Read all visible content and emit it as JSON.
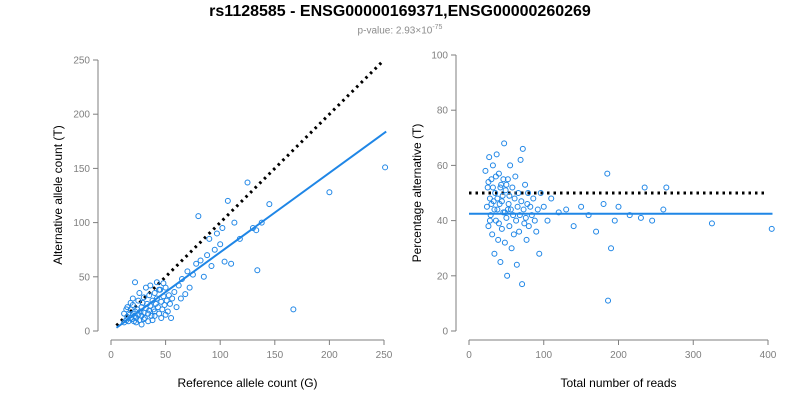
{
  "title": "rs1128585 - ENSG00000169371,ENSG00000260269",
  "subtitle": {
    "prefix": "p-value: 2.93×10",
    "exponent": "-75"
  },
  "colors": {
    "series": "#1f86e6",
    "reference": "#000000",
    "axis": "#7f7f7f"
  },
  "chart_data": [
    {
      "type": "scatter",
      "xlabel": "Reference allele count (G)",
      "ylabel": "Alternative allele count (T)",
      "xlim": [
        0,
        250
      ],
      "ylim": [
        0,
        250
      ],
      "xticks": [
        0,
        50,
        100,
        150,
        200,
        250
      ],
      "yticks": [
        0,
        50,
        100,
        150,
        200,
        250
      ],
      "grid": false,
      "reference_line": {
        "style": "dotted",
        "x": [
          5,
          250
        ],
        "y": [
          5,
          250
        ]
      },
      "fit_line": {
        "style": "solid",
        "x": [
          5,
          252
        ],
        "y": [
          3,
          184
        ]
      },
      "points": [
        [
          12,
          8
        ],
        [
          14,
          10
        ],
        [
          15,
          13
        ],
        [
          16,
          9
        ],
        [
          17,
          15
        ],
        [
          18,
          12
        ],
        [
          18,
          20
        ],
        [
          19,
          11
        ],
        [
          20,
          16
        ],
        [
          20,
          24
        ],
        [
          21,
          9
        ],
        [
          22,
          14
        ],
        [
          22,
          18
        ],
        [
          23,
          12
        ],
        [
          24,
          20
        ],
        [
          25,
          15
        ],
        [
          25,
          28
        ],
        [
          26,
          10
        ],
        [
          27,
          18
        ],
        [
          28,
          22
        ],
        [
          28,
          14
        ],
        [
          29,
          26
        ],
        [
          30,
          17
        ],
        [
          30,
          31
        ],
        [
          31,
          12
        ],
        [
          32,
          21
        ],
        [
          33,
          25
        ],
        [
          34,
          16
        ],
        [
          35,
          19
        ],
        [
          35,
          33
        ],
        [
          36,
          23
        ],
        [
          37,
          14
        ],
        [
          38,
          28
        ],
        [
          39,
          20
        ],
        [
          40,
          35
        ],
        [
          40,
          18
        ],
        [
          41,
          25
        ],
        [
          42,
          30
        ],
        [
          43,
          22
        ],
        [
          44,
          16
        ],
        [
          45,
          38
        ],
        [
          46,
          27
        ],
        [
          47,
          20
        ],
        [
          48,
          32
        ],
        [
          49,
          24
        ],
        [
          50,
          40
        ],
        [
          51,
          28
        ],
        [
          52,
          18
        ],
        [
          53,
          33
        ],
        [
          54,
          25
        ],
        [
          55,
          12
        ],
        [
          56,
          30
        ],
        [
          58,
          36
        ],
        [
          60,
          22
        ],
        [
          62,
          42
        ],
        [
          64,
          30
        ],
        [
          65,
          48
        ],
        [
          68,
          34
        ],
        [
          70,
          55
        ],
        [
          72,
          40
        ],
        [
          75,
          52
        ],
        [
          78,
          62
        ],
        [
          80,
          106
        ],
        [
          82,
          65
        ],
        [
          85,
          50
        ],
        [
          88,
          70
        ],
        [
          90,
          85
        ],
        [
          92,
          60
        ],
        [
          95,
          75
        ],
        [
          97,
          90
        ],
        [
          100,
          80
        ],
        [
          102,
          95
        ],
        [
          104,
          64
        ],
        [
          107,
          120
        ],
        [
          110,
          62
        ],
        [
          113,
          100
        ],
        [
          118,
          85
        ],
        [
          125,
          137
        ],
        [
          130,
          95
        ],
        [
          133,
          93
        ],
        [
          134,
          56
        ],
        [
          138,
          100
        ],
        [
          145,
          117
        ],
        [
          167,
          20
        ],
        [
          200,
          128
        ],
        [
          251,
          151
        ],
        [
          15,
          22
        ],
        [
          18,
          26
        ],
        [
          20,
          30
        ],
        [
          23,
          8
        ],
        [
          26,
          35
        ],
        [
          28,
          6
        ],
        [
          30,
          11
        ],
        [
          32,
          40
        ],
        [
          34,
          9
        ],
        [
          22,
          45
        ],
        [
          36,
          42
        ],
        [
          38,
          10
        ],
        [
          40,
          14
        ],
        [
          42,
          45
        ],
        [
          44,
          38
        ],
        [
          46,
          12
        ],
        [
          48,
          44
        ],
        [
          50,
          15
        ],
        [
          12,
          16
        ],
        [
          14,
          20
        ]
      ]
    },
    {
      "type": "scatter",
      "xlabel": "Total number of reads",
      "ylabel": "Percentage alternative (T)",
      "xlim": [
        0,
        400
      ],
      "ylim": [
        0,
        100
      ],
      "xticks": [
        0,
        100,
        200,
        300,
        400
      ],
      "yticks": [
        0,
        20,
        40,
        60,
        80,
        100
      ],
      "grid": false,
      "reference_line": {
        "style": "dotted",
        "value": 50,
        "x": [
          0,
          400
        ]
      },
      "fit_line": {
        "style": "solid",
        "value": 42.5,
        "x": [
          0,
          406
        ]
      },
      "points": [
        [
          22,
          58
        ],
        [
          24,
          45
        ],
        [
          25,
          52
        ],
        [
          26,
          38
        ],
        [
          27,
          63
        ],
        [
          28,
          48
        ],
        [
          29,
          42
        ],
        [
          30,
          55
        ],
        [
          31,
          35
        ],
        [
          32,
          60
        ],
        [
          33,
          47
        ],
        [
          34,
          28
        ],
        [
          35,
          50
        ],
        [
          36,
          40
        ],
        [
          37,
          64
        ],
        [
          38,
          44
        ],
        [
          39,
          33
        ],
        [
          40,
          57
        ],
        [
          41,
          46
        ],
        [
          42,
          25
        ],
        [
          43,
          53
        ],
        [
          44,
          37
        ],
        [
          45,
          49
        ],
        [
          46,
          43
        ],
        [
          47,
          68
        ],
        [
          48,
          32
        ],
        [
          49,
          51
        ],
        [
          50,
          41
        ],
        [
          51,
          20
        ],
        [
          52,
          55
        ],
        [
          53,
          46
        ],
        [
          54,
          38
        ],
        [
          55,
          60
        ],
        [
          56,
          44
        ],
        [
          57,
          30
        ],
        [
          58,
          52
        ],
        [
          59,
          42
        ],
        [
          60,
          35
        ],
        [
          61,
          48
        ],
        [
          62,
          56
        ],
        [
          63,
          40
        ],
        [
          64,
          24
        ],
        [
          65,
          45
        ],
        [
          66,
          50
        ],
        [
          67,
          36
        ],
        [
          68,
          42
        ],
        [
          69,
          62
        ],
        [
          70,
          47
        ],
        [
          71,
          17
        ],
        [
          72,
          66
        ],
        [
          73,
          44
        ],
        [
          74,
          39
        ],
        [
          75,
          53
        ],
        [
          76,
          41
        ],
        [
          77,
          33
        ],
        [
          78,
          46
        ],
        [
          79,
          50
        ],
        [
          80,
          38
        ],
        [
          82,
          45
        ],
        [
          84,
          42
        ],
        [
          86,
          48
        ],
        [
          88,
          40
        ],
        [
          90,
          36
        ],
        [
          92,
          44
        ],
        [
          94,
          28
        ],
        [
          96,
          50
        ],
        [
          100,
          45
        ],
        [
          105,
          40
        ],
        [
          110,
          48
        ],
        [
          120,
          43
        ],
        [
          130,
          44
        ],
        [
          140,
          38
        ],
        [
          150,
          45
        ],
        [
          160,
          42
        ],
        [
          170,
          36
        ],
        [
          180,
          46
        ],
        [
          185,
          57
        ],
        [
          186,
          11
        ],
        [
          190,
          30
        ],
        [
          195,
          40
        ],
        [
          200,
          45
        ],
        [
          215,
          42
        ],
        [
          230,
          41
        ],
        [
          235,
          52
        ],
        [
          245,
          40
        ],
        [
          260,
          44
        ],
        [
          264,
          52
        ],
        [
          325,
          39
        ],
        [
          405,
          37
        ],
        [
          26,
          54
        ],
        [
          28,
          40
        ],
        [
          30,
          46
        ],
        [
          32,
          52
        ],
        [
          34,
          44
        ],
        [
          36,
          56
        ],
        [
          38,
          48
        ],
        [
          40,
          39
        ],
        [
          42,
          52
        ],
        [
          44,
          47
        ],
        [
          46,
          55
        ],
        [
          48,
          43
        ],
        [
          50,
          53
        ],
        [
          52,
          44
        ],
        [
          54,
          49
        ]
      ]
    }
  ]
}
